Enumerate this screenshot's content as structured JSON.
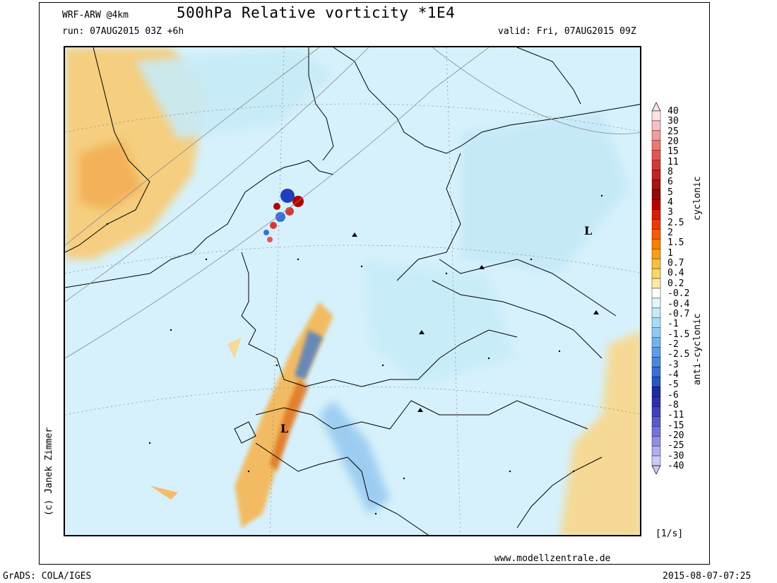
{
  "header": {
    "title": "500hPa Relative vorticity *1E4",
    "model": "WRF-ARW @4km",
    "run": "run: 07AUG2015 03Z +6h",
    "valid": "valid: Fri, 07AUG2015 09Z"
  },
  "footer": {
    "credit": "(c) Janek Zimmer",
    "units": "[1/s]",
    "website": "www.modellzentrale.de",
    "software": "GrADS: COLA/IGES",
    "timestamp": "2015-08-07-07:25"
  },
  "map": {
    "low_pressure_label": "L",
    "lows": [
      "L",
      "L"
    ]
  },
  "legend": {
    "cyclonic_label": "cyclonic",
    "anticyclonic_label": "anti-cyclonic",
    "levels": [
      "40",
      "30",
      "25",
      "20",
      "15",
      "11",
      "8",
      "6",
      "5",
      "4",
      "3",
      "2.5",
      "2",
      "1.5",
      "1",
      "0.7",
      "0.4",
      "0.2",
      "-0.2",
      "-0.4",
      "-0.7",
      "-1",
      "-1.5",
      "-2",
      "-2.5",
      "-3",
      "-4",
      "-5",
      "-6",
      "-8",
      "-11",
      "-15",
      "-20",
      "-25",
      "-30",
      "-40"
    ],
    "colors": [
      "#fde3e3",
      "#f7c0c0",
      "#f29b9b",
      "#ec7777",
      "#e25656",
      "#d63838",
      "#c42222",
      "#a81414",
      "#8f0a0a",
      "#b80000",
      "#d81e00",
      "#ee3a00",
      "#f55e00",
      "#f88000",
      "#fa9e1a",
      "#fbbf40",
      "#fdd66a",
      "#fee9a2",
      "#ffffff",
      "#dff6fc",
      "#c4ecf7",
      "#a9dcf3",
      "#8fcaef",
      "#72b5ea",
      "#5a9ee6",
      "#4a87e0",
      "#3a6fd6",
      "#2855c8",
      "#1a2ca0",
      "#2d2fb0",
      "#4240c2",
      "#5a58d0",
      "#7472dc",
      "#8f8fe6",
      "#aeaef0",
      "#cbcaf7"
    ]
  }
}
